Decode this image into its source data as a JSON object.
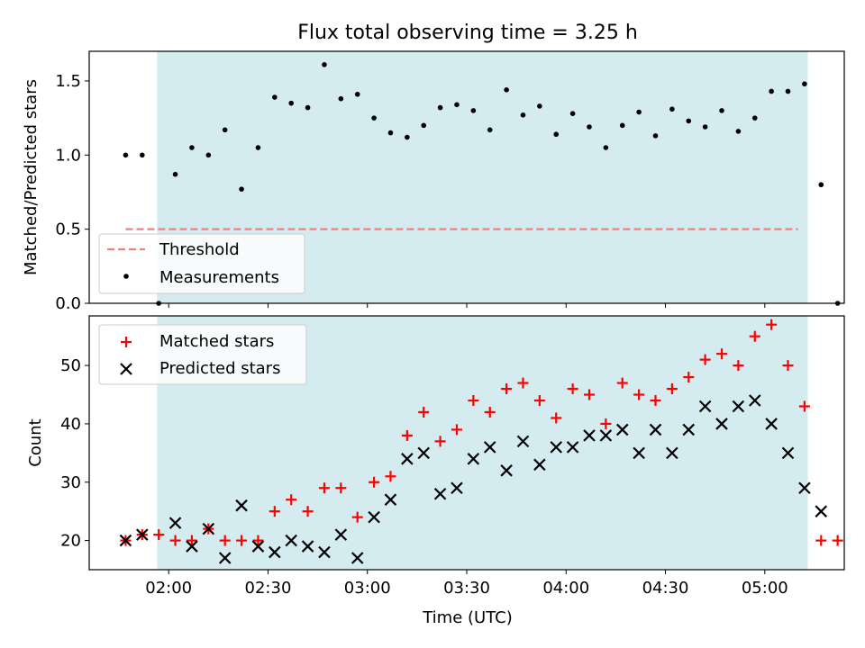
{
  "title": "Flux total observing time = 3.25 h",
  "colors": {
    "shade": "#d4ebf0",
    "threshold": "#f08080",
    "matched": "#ff0000",
    "predicted": "#000000",
    "measurement": "#000000"
  },
  "chart_data": [
    {
      "type": "scatter",
      "name": "ratio-panel",
      "ylabel": "Matched/Predicted stars",
      "ylim": [
        0,
        1.7
      ],
      "yticks": [
        0.0,
        0.5,
        1.0,
        1.5
      ],
      "ytick_labels": [
        "0.0",
        "0.5",
        "1.0",
        "1.5"
      ],
      "xlim_minutes": [
        96,
        324
      ],
      "shaded_span_minutes": [
        116.5,
        313
      ],
      "threshold": {
        "label": "Threshold",
        "value": 0.5,
        "x_range_minutes": [
          107,
          310
        ]
      },
      "legend": [
        "Threshold",
        "Measurements"
      ],
      "legend_position": "lower-left",
      "series": [
        {
          "name": "Measurements",
          "x_minutes": [
            107,
            112,
            117,
            122,
            127,
            132,
            137,
            142,
            147,
            152,
            157,
            162,
            167,
            172,
            177,
            182,
            187,
            192,
            197,
            202,
            207,
            212,
            217,
            222,
            227,
            232,
            237,
            242,
            247,
            252,
            257,
            262,
            267,
            272,
            277,
            282,
            287,
            292,
            297,
            302,
            307,
            312,
            317
          ],
          "values": [
            1.0,
            1.0,
            0.0,
            0.87,
            1.05,
            1.0,
            1.17,
            0.77,
            1.05,
            1.39,
            1.35,
            1.32,
            1.61,
            1.38,
            1.41,
            1.25,
            1.15,
            1.12,
            1.2,
            1.32,
            1.34,
            1.3,
            1.17,
            1.44,
            1.27,
            1.33,
            1.14,
            1.28,
            1.19,
            1.05,
            1.2,
            1.29,
            1.13,
            1.31,
            1.23,
            1.19,
            1.3,
            1.16,
            1.25,
            1.43,
            1.43,
            1.48,
            0.8
          ],
          "extra_points": [
            {
              "x_minutes": 322,
              "value": 0.0
            }
          ]
        }
      ]
    },
    {
      "type": "scatter",
      "name": "count-panel",
      "xlabel": "Time (UTC)",
      "ylabel": "Count",
      "ylim": [
        15,
        58.5
      ],
      "yticks": [
        20,
        30,
        40,
        50
      ],
      "ytick_labels": [
        "20",
        "30",
        "40",
        "50"
      ],
      "xticks_minutes": [
        120,
        150,
        180,
        210,
        240,
        270,
        300
      ],
      "xtick_labels": [
        "02:00",
        "02:30",
        "03:00",
        "03:30",
        "04:00",
        "04:30",
        "05:00"
      ],
      "xlim_minutes": [
        96,
        324
      ],
      "shaded_span_minutes": [
        116.5,
        313
      ],
      "legend": [
        "Matched stars",
        "Predicted stars"
      ],
      "legend_position": "upper-left",
      "series": [
        {
          "name": "Matched stars",
          "marker": "plus",
          "x_minutes": [
            107,
            112,
            117,
            122,
            127,
            132,
            137,
            142,
            147,
            152,
            157,
            162,
            167,
            172,
            177,
            182,
            187,
            192,
            197,
            202,
            207,
            212,
            217,
            222,
            227,
            232,
            237,
            242,
            247,
            252,
            257,
            262,
            267,
            272,
            277,
            282,
            287,
            292,
            297,
            302,
            307,
            312,
            317,
            322
          ],
          "values": [
            20,
            21,
            21,
            20,
            20,
            22,
            20,
            20,
            20,
            25,
            27,
            25,
            29,
            29,
            24,
            30,
            31,
            38,
            42,
            37,
            39,
            44,
            42,
            46,
            47,
            44,
            41,
            46,
            45,
            40,
            47,
            45,
            44,
            46,
            48,
            51,
            52,
            50,
            55,
            57,
            50,
            43,
            20,
            20
          ]
        },
        {
          "name": "Predicted stars",
          "marker": "x",
          "x_minutes": [
            107,
            112,
            122,
            127,
            132,
            137,
            142,
            147,
            152,
            157,
            162,
            167,
            172,
            177,
            182,
            187,
            192,
            197,
            202,
            207,
            212,
            217,
            222,
            227,
            232,
            237,
            242,
            247,
            252,
            257,
            262,
            267,
            272,
            277,
            282,
            287,
            292,
            297,
            302,
            307,
            312,
            317
          ],
          "values": [
            20,
            21,
            23,
            19,
            22,
            17,
            26,
            19,
            18,
            20,
            19,
            18,
            21,
            17,
            24,
            27,
            34,
            35,
            28,
            29,
            34,
            36,
            32,
            37,
            33,
            36,
            36,
            38,
            38,
            39,
            35,
            39,
            35,
            39,
            43,
            40,
            43,
            44,
            40,
            35,
            29,
            25
          ]
        }
      ]
    }
  ]
}
